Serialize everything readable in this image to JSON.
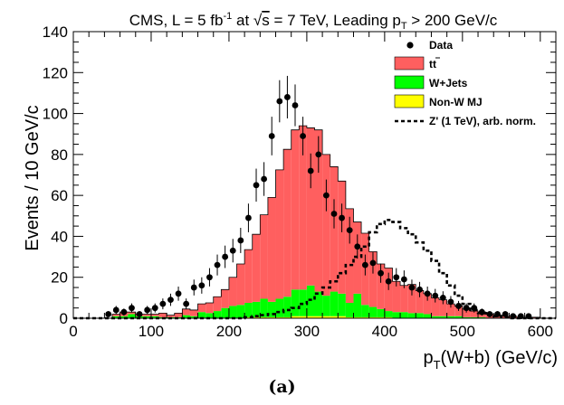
{
  "chart_data": {
    "type": "histogram",
    "title": "CMS, L = 5 fb-1 at √s = 7 TeV, Leading pT > 200 GeV/c",
    "title_parts": {
      "a": "CMS, L = 5 fb",
      "b": "-1",
      "c": " at ",
      "d": "√",
      "e": "s",
      "f": " = 7 TeV, Leading p",
      "g": "T",
      "h": " > 200 GeV/c"
    },
    "xlabel": "pT(W+b) (GeV/c)",
    "xlabel_parts": {
      "a": "p",
      "b": "T",
      "c": "(W+b) (GeV/c)"
    },
    "ylabel": "Events / 10 GeV/c",
    "xlim": [
      0,
      620
    ],
    "ylim": [
      0,
      140
    ],
    "xticks": [
      0,
      100,
      200,
      300,
      400,
      500,
      600
    ],
    "yticks": [
      0,
      20,
      40,
      60,
      80,
      100,
      120,
      140
    ],
    "bin_width": 10,
    "bin_edges_start": 0,
    "stack": [
      {
        "name": "Non-W MJ",
        "color": "#ffff00",
        "values": [
          0,
          0,
          0,
          0,
          0,
          0,
          0,
          0,
          0,
          0,
          0,
          0,
          0,
          0,
          0,
          0,
          0,
          0,
          0,
          0,
          0,
          0,
          0.5,
          0.5,
          0.5,
          0.5,
          0.5,
          0.5,
          1,
          1,
          1,
          1,
          1,
          1,
          1,
          0.5,
          0.5,
          0.5,
          0.5,
          0.5,
          0.5,
          0,
          0,
          0,
          0,
          0,
          0,
          0,
          0,
          0,
          0,
          0,
          0,
          0,
          0,
          0,
          0,
          0,
          0,
          0,
          0,
          0
        ]
      },
      {
        "name": "W+Jets",
        "color": "#00ff00",
        "values": [
          0,
          0,
          0,
          0,
          0,
          1,
          1,
          2,
          1,
          1,
          1,
          0.5,
          0.5,
          0.5,
          1.5,
          1,
          3,
          2.5,
          3.5,
          5,
          6,
          6.5,
          7,
          7.5,
          9,
          7.5,
          9,
          10,
          13,
          13,
          15,
          12,
          10,
          12,
          11,
          7,
          11.5,
          6,
          5,
          4,
          3,
          3,
          3,
          2.5,
          2.5,
          2,
          1,
          1,
          1,
          1,
          0.5,
          0.5,
          0.5,
          0,
          0,
          0,
          0,
          0,
          0,
          0,
          0,
          0
        ]
      },
      {
        "name": "tt̄",
        "color": "#ff5f5f",
        "values": [
          0,
          0,
          0,
          0,
          0,
          1,
          2,
          1,
          1,
          1,
          1,
          2,
          1,
          2,
          3,
          3,
          4,
          5,
          7,
          9,
          14,
          20,
          26,
          33,
          41,
          51,
          63,
          72,
          78,
          80,
          77,
          79,
          69,
          61,
          55,
          46,
          35,
          35,
          27,
          22,
          21,
          15,
          13,
          14,
          11,
          10,
          9,
          8,
          6,
          5,
          4,
          3,
          2.5,
          2,
          1.5,
          1,
          1,
          0.5,
          0.5,
          0.5,
          0,
          0
        ]
      }
    ],
    "data_points": {
      "name": "Data",
      "x": [
        45,
        55,
        65,
        75,
        85,
        95,
        105,
        115,
        125,
        135,
        145,
        155,
        165,
        175,
        185,
        195,
        205,
        215,
        225,
        235,
        245,
        255,
        265,
        275,
        285,
        295,
        305,
        315,
        325,
        335,
        345,
        355,
        365,
        375,
        385,
        395,
        405,
        415,
        425,
        435,
        445,
        455,
        465,
        475,
        485,
        495,
        505,
        515,
        525,
        535,
        545,
        555,
        565,
        575,
        585
      ],
      "y": [
        2,
        4,
        3,
        5,
        2,
        4,
        5,
        7,
        9,
        12,
        7,
        15,
        16,
        20,
        26,
        30,
        33,
        38,
        49,
        65,
        68,
        89,
        106,
        108,
        104,
        89,
        72,
        80,
        60,
        51,
        49,
        43,
        35,
        26,
        27,
        22,
        18,
        20,
        19,
        15,
        14,
        12,
        11,
        10,
        8,
        6,
        5,
        5,
        3,
        2,
        2,
        2,
        1,
        1,
        1
      ]
    },
    "zprime": {
      "name": "Z' (1 TeV), arb. norm.",
      "style": "dashed",
      "values": [
        0,
        0,
        0,
        0,
        0,
        0,
        0,
        0,
        0,
        0,
        0,
        0,
        0,
        0,
        0,
        0,
        0,
        0,
        0,
        0,
        0,
        0,
        0.5,
        1,
        1.5,
        2,
        3,
        4,
        5,
        7,
        9,
        12,
        15,
        18,
        22,
        26,
        30,
        35,
        42,
        46,
        48,
        47,
        44,
        41,
        37,
        33,
        28,
        22,
        16,
        11,
        7,
        4,
        2.5,
        1.5,
        1,
        0.5,
        0,
        0,
        0,
        0,
        0,
        0
      ]
    },
    "legend": {
      "position": "top-right",
      "entries": [
        {
          "label": "Data",
          "marker": "point"
        },
        {
          "label": "tt",
          "marker": "box",
          "color": "#ff5f5f"
        },
        {
          "label": "W+Jets",
          "marker": "box",
          "color": "#00ff00"
        },
        {
          "label": "Non-W MJ",
          "marker": "box",
          "color": "#ffff00"
        },
        {
          "label": "Z' (1 TeV), arb. norm.",
          "marker": "dashed-line"
        }
      ]
    },
    "grid": false
  },
  "caption": "(a)"
}
